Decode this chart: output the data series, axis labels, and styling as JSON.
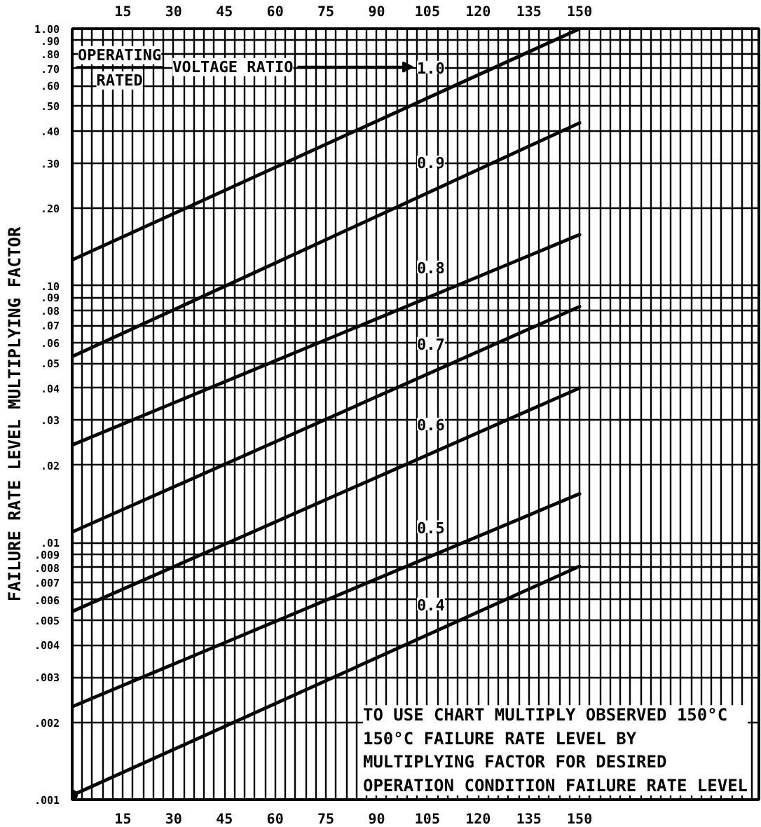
{
  "chart_data": {
    "type": "line",
    "ylabel": "FAILURE RATE LEVEL MULTIPLYING FACTOR",
    "annotations": [
      "OPERATING",
      "RATED",
      "VOLTAGE RATIO",
      "TO USE CHART MULTIPLY OBSERVED 150°C\n150°C FAILURE RATE LEVEL BY\nMULTIPLYING FACTOR FOR DESIRED\nOPERATION CONDITION FAILURE RATE LEVEL"
    ],
    "x": [
      0,
      150
    ],
    "series": [
      {
        "name": "1.0",
        "color": "#000000",
        "values": [
          0.126,
          1.0
        ]
      },
      {
        "name": "0.9",
        "color": "#000000",
        "values": [
          0.053,
          0.43
        ]
      },
      {
        "name": "0.8",
        "color": "#000000",
        "values": [
          0.024,
          0.158
        ]
      },
      {
        "name": "0.7",
        "color": "#000000",
        "values": [
          0.011,
          0.083
        ]
      },
      {
        "name": "0.6",
        "color": "#000000",
        "values": [
          0.0054,
          0.04
        ]
      },
      {
        "name": "0.5",
        "color": "#000000",
        "values": [
          0.0023,
          0.0155
        ]
      },
      {
        "name": "0.4",
        "color": "#000000",
        "values": [
          0.00104,
          0.0081
        ]
      },
      {
        "type": "scatter",
        "x": [
          0
        ],
        "color": "#000000",
        "marker": "circle",
        "values": [
          0.00104
        ]
      }
    ],
    "log": "y",
    "xlim": [
      0,
      203
    ],
    "ylim": [
      0.001,
      1
    ],
    "grid": true,
    "xticks": [
      {
        "value": 3,
        "label": null
      },
      {
        "value": 6,
        "label": null
      },
      {
        "value": 9,
        "label": null
      },
      {
        "value": 12,
        "label": null
      },
      15,
      {
        "value": 18,
        "label": null
      },
      {
        "value": 21,
        "label": null
      },
      {
        "value": 24,
        "label": null
      },
      {
        "value": 27,
        "label": null
      },
      30,
      {
        "value": 33,
        "label": null
      },
      {
        "value": 36,
        "label": null
      },
      {
        "value": 39,
        "label": null
      },
      {
        "value": 42,
        "label": null
      },
      45,
      {
        "value": 48,
        "label": null
      },
      {
        "value": 51,
        "label": null
      },
      {
        "value": 54,
        "label": null
      },
      {
        "value": 57,
        "label": null
      },
      60,
      {
        "value": 63,
        "label": null
      },
      {
        "value": 66,
        "label": null
      },
      {
        "value": 69,
        "label": null
      },
      {
        "value": 72,
        "label": null
      },
      75,
      {
        "value": 78,
        "label": null
      },
      {
        "value": 81,
        "label": null
      },
      {
        "value": 84,
        "label": null
      },
      {
        "value": 87,
        "label": null
      },
      90,
      {
        "value": 93,
        "label": null
      },
      {
        "value": 96,
        "label": null
      },
      {
        "value": 99,
        "label": null
      },
      {
        "value": 102,
        "label": null
      },
      105,
      {
        "value": 108,
        "label": null
      },
      {
        "value": 111,
        "label": null
      },
      {
        "value": 114,
        "label": null
      },
      {
        "value": 117,
        "label": null
      },
      120,
      {
        "value": 123,
        "label": null
      },
      {
        "value": 126,
        "label": null
      },
      {
        "value": 129,
        "label": null
      },
      {
        "value": 132,
        "label": null
      },
      135,
      {
        "value": 138,
        "label": null
      },
      {
        "value": 141,
        "label": null
      },
      {
        "value": 144,
        "label": null
      },
      {
        "value": 147,
        "label": null
      },
      150,
      {
        "value": 153,
        "label": null
      },
      {
        "value": 156,
        "label": null
      },
      {
        "value": 159,
        "label": null
      },
      {
        "value": 162,
        "label": null
      },
      {
        "value": 165,
        "label": null
      },
      {
        "value": 168,
        "label": null
      },
      {
        "value": 171,
        "label": null
      },
      {
        "value": 174,
        "label": null
      },
      {
        "value": 177,
        "label": null
      },
      {
        "value": 180,
        "label": null
      },
      {
        "value": 183,
        "label": null
      },
      {
        "value": 186,
        "label": null
      },
      {
        "value": 189,
        "label": null
      },
      {
        "value": 192,
        "label": null
      },
      {
        "value": 195,
        "label": null
      },
      {
        "value": 198,
        "label": null
      },
      {
        "value": 201,
        "label": null
      }
    ],
    "x2lim": [
      0,
      203
    ],
    "x2ticks": [
      15,
      30,
      45,
      60,
      75,
      90,
      105,
      120,
      135,
      150
    ],
    "yticks": [
      {
        "value": 0.001,
        "label": ".001"
      },
      {
        "value": 0.002,
        "label": ".002"
      },
      {
        "value": 0.003,
        "label": ".003"
      },
      {
        "value": 0.004,
        "label": ".004"
      },
      {
        "value": 0.005,
        "label": ".005"
      },
      {
        "value": 0.006,
        "label": ".006"
      },
      {
        "value": 0.007,
        "label": ".007"
      },
      {
        "value": 0.008,
        "label": ".008"
      },
      {
        "value": 0.009,
        "label": ".009"
      },
      {
        "value": 0.01,
        "label": ".01"
      },
      {
        "value": 0.02,
        "label": ".02"
      },
      {
        "value": 0.03,
        "label": ".03"
      },
      {
        "value": 0.04,
        "label": ".04"
      },
      {
        "value": 0.05,
        "label": ".05"
      },
      {
        "value": 0.06,
        "label": ".06"
      },
      {
        "value": 0.07,
        "label": ".07"
      },
      {
        "value": 0.08,
        "label": ".08"
      },
      {
        "value": 0.09,
        "label": ".09"
      },
      {
        "value": 0.1,
        "label": ".10"
      },
      {
        "value": 0.2,
        "label": ".20"
      },
      {
        "value": 0.3,
        "label": ".30"
      },
      {
        "value": 0.4,
        "label": ".40"
      },
      {
        "value": 0.5,
        "label": ".50"
      },
      {
        "value": 0.6,
        "label": ".60"
      },
      {
        "value": 0.7,
        "label": ".70"
      },
      {
        "value": 0.8,
        "label": ".80"
      },
      {
        "value": 0.9,
        "label": ".90"
      },
      {
        "value": 1,
        "label": "1.00"
      }
    ]
  }
}
